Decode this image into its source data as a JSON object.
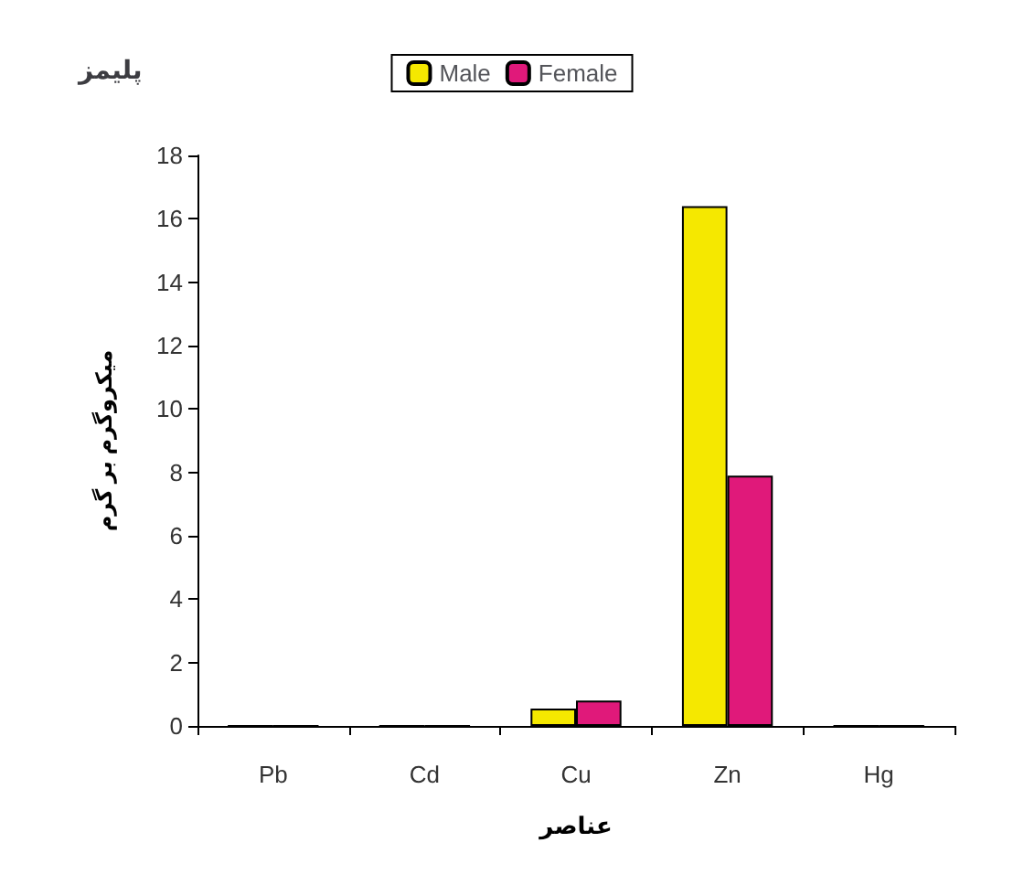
{
  "chart_data": {
    "type": "bar",
    "title": "پلیمز",
    "xlabel": "عناصر",
    "ylabel": "میکروگرم بر گرم",
    "categories": [
      "Pb",
      "Cd",
      "Cu",
      "Zn",
      "Hg"
    ],
    "series": [
      {
        "name": "Male",
        "color": "#f5e800",
        "values": [
          0,
          0,
          0.55,
          16.4,
          0
        ]
      },
      {
        "name": "Female",
        "color": "#e0197a",
        "values": [
          0,
          0,
          0.8,
          7.9,
          0
        ]
      }
    ],
    "ylim": [
      0,
      18
    ],
    "yticks": [
      0,
      2,
      4,
      6,
      8,
      10,
      12,
      14,
      16,
      18
    ],
    "grid": false,
    "legend": "top"
  }
}
